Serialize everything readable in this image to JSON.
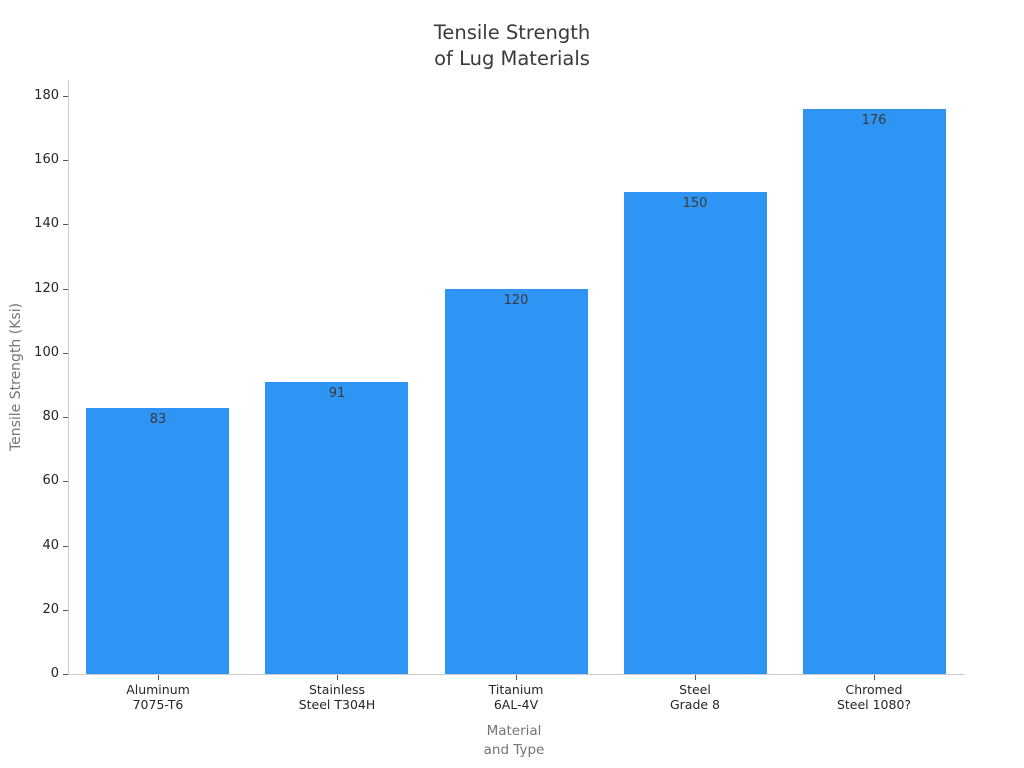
{
  "chart_data": {
    "type": "bar",
    "title": "Tensile Strength\nof Lug Materials",
    "xlabel": "Material\nand Type",
    "ylabel": "Tensile Strength (Ksi)",
    "categories": [
      "Aluminum\n7075-T6",
      "Stainless\nSteel T304H",
      "Titanium\n6AL-4V",
      "Steel\nGrade 8",
      "Chromed\nSteel 1080?"
    ],
    "values": [
      83,
      91,
      120,
      150,
      176
    ],
    "yticks": [
      0,
      20,
      40,
      60,
      80,
      100,
      120,
      140,
      160,
      180
    ],
    "ylim": [
      0,
      185
    ],
    "grid": false,
    "legend": null,
    "colors": {
      "bar": "#2E95F5",
      "title": "#3A3A3A",
      "tick_label": "#262626",
      "axis_label": "#757575",
      "spine": "#CCCCCC",
      "tick_mark": "#555555",
      "value_label": "#3A3A3A",
      "background": "#FFFFFF"
    }
  }
}
